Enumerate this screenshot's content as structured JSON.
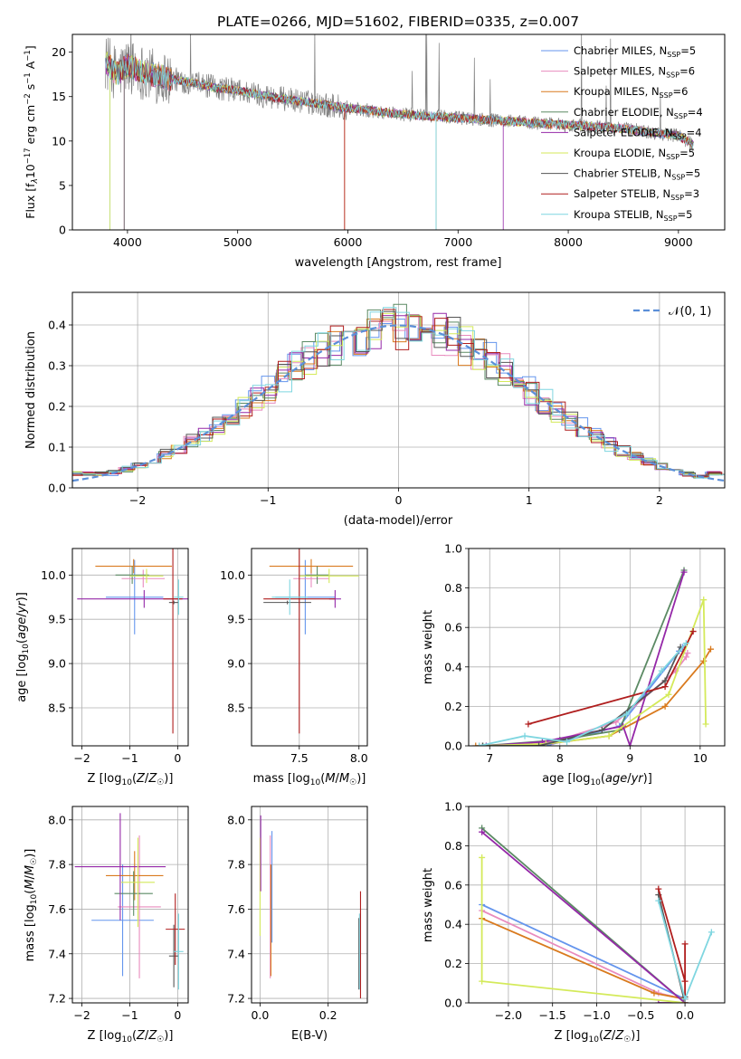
{
  "title": "PLATE=0266, MJD=51602, FIBERID=0335, z=0.007",
  "colors": [
    "#6495ED",
    "#E88BBE",
    "#D97A1E",
    "#5B8A64",
    "#9528A8",
    "#D4EA5A",
    "#555555",
    "#B01E1E",
    "#7FD6E0"
  ],
  "chart_data": [
    {
      "id": "spectrum",
      "type": "line",
      "xlabel": "wavelength [Angstrom, rest frame]",
      "ylabel": "Flux [f_λ 10^-17 erg cm^-2 s^-1 A^-1]",
      "xlim": [
        3500,
        9420
      ],
      "ylim": [
        0,
        22
      ],
      "xticks": [
        4000,
        5000,
        6000,
        7000,
        8000,
        9000
      ],
      "yticks": [
        0,
        5,
        10,
        15,
        20
      ],
      "grid": false,
      "legend_position": "top-right",
      "continuum": {
        "x": [
          3800,
          3900,
          4000,
          4100,
          4200,
          4400,
          4600,
          4800,
          5000,
          5200,
          5500,
          6000,
          6500,
          7000,
          7500,
          8000,
          8500,
          9000,
          9150
        ],
        "y": [
          19,
          17.5,
          18.5,
          18,
          17.5,
          17,
          16.5,
          16,
          15.7,
          15.2,
          14.6,
          13.7,
          13.0,
          12.6,
          12.2,
          11.8,
          11.4,
          10.6,
          9.5
        ]
      },
      "series": [
        {
          "name": "Chabrier MILES",
          "nssp": "5"
        },
        {
          "name": "Salpeter MILES",
          "nssp": "6"
        },
        {
          "name": "Kroupa MILES",
          "nssp": "6"
        },
        {
          "name": "Chabrier ELODIE",
          "nssp": "4"
        },
        {
          "name": "Salpeter ELODIE",
          "nssp": "4"
        },
        {
          "name": "Kroupa ELODIE",
          "nssp": "5"
        },
        {
          "name": "Chabrier STELIB",
          "nssp": "5"
        },
        {
          "name": "Salpeter STELIB",
          "nssp": "3"
        },
        {
          "name": "Kroupa STELIB",
          "nssp": "5"
        }
      ]
    },
    {
      "id": "residuals",
      "type": "step-histogram",
      "xlabel": "(data-model)/error",
      "ylabel": "Normed distribution",
      "xlim": [
        -2.5,
        2.5
      ],
      "ylim": [
        0,
        0.48
      ],
      "xticks": [
        -2,
        -1,
        0,
        1,
        2
      ],
      "yticks": [
        0.0,
        0.1,
        0.2,
        0.3,
        0.4
      ],
      "grid": true,
      "legend": "𝒩(0, 1)",
      "legend_position": "top-right",
      "normal": {
        "mean": 0,
        "sigma": 1
      }
    },
    {
      "id": "age-vs-Z",
      "type": "errorbar",
      "xlabel": "Z [log10(Z/Z⊙)]",
      "ylabel": "age [log10(age/yr)]",
      "xlim": [
        -2.2,
        0.22
      ],
      "ylim": [
        8.07,
        10.3
      ],
      "xticks": [
        -2,
        -1,
        0
      ],
      "yticks": [
        8.5,
        9.0,
        9.5,
        10.0
      ],
      "grid": true,
      "points": [
        {
          "x": -0.9,
          "xerr": 0.6,
          "y": 9.75,
          "yerr": 0.42,
          "c": 0
        },
        {
          "x": -0.72,
          "xerr": 0.45,
          "y": 9.96,
          "yerr": 0.1,
          "c": 1
        },
        {
          "x": -0.92,
          "xerr": 0.8,
          "y": 10.1,
          "yerr": 0.08,
          "c": 2
        },
        {
          "x": -0.95,
          "xerr": 0.35,
          "y": 10.0,
          "yerr": 0.1,
          "c": 3
        },
        {
          "x": -0.7,
          "xerr": 1.4,
          "y": 9.73,
          "yerr": 0.1,
          "c": 4
        },
        {
          "x": -0.65,
          "xerr": 0.35,
          "y": 9.99,
          "yerr": 0.08,
          "c": 5
        },
        {
          "x": -0.08,
          "xerr": 0.1,
          "y": 9.69,
          "yerr": 0.02,
          "c": 6
        },
        {
          "x": -0.1,
          "xerr": 0.2,
          "y": 9.73,
          "yerr": 1.52,
          "c": 7
        },
        {
          "x": 0.02,
          "xerr": 0.1,
          "y": 9.75,
          "yerr": 0.2,
          "c": 8
        }
      ]
    },
    {
      "id": "age-vs-mass",
      "type": "errorbar",
      "xlabel": "mass [log10(M/M⊙)]",
      "ylabel": "",
      "xlim": [
        7.1,
        8.07
      ],
      "ylim": [
        8.07,
        10.3
      ],
      "xticks": [
        7.5,
        8.0
      ],
      "yticks": [
        8.5,
        9.0,
        9.5,
        10.0
      ],
      "grid": true,
      "points": [
        {
          "x": 7.55,
          "xerr": 0.25,
          "y": 9.75,
          "yerr": 0.42,
          "c": 0
        },
        {
          "x": 7.6,
          "xerr": 0.15,
          "y": 9.96,
          "yerr": 0.1,
          "c": 1
        },
        {
          "x": 7.6,
          "xerr": 0.35,
          "y": 10.1,
          "yerr": 0.08,
          "c": 2
        },
        {
          "x": 7.65,
          "xerr": 0.1,
          "y": 10.0,
          "yerr": 0.1,
          "c": 3
        },
        {
          "x": 7.8,
          "xerr": 0.05,
          "y": 9.73,
          "yerr": 0.1,
          "c": 4
        },
        {
          "x": 7.75,
          "xerr": 0.25,
          "y": 9.99,
          "yerr": 0.08,
          "c": 5
        },
        {
          "x": 7.4,
          "xerr": 0.2,
          "y": 9.69,
          "yerr": 0.02,
          "c": 6
        },
        {
          "x": 7.5,
          "xerr": 0.3,
          "y": 9.73,
          "yerr": 1.52,
          "c": 7
        },
        {
          "x": 7.42,
          "xerr": 0.15,
          "y": 9.75,
          "yerr": 0.2,
          "c": 8
        }
      ]
    },
    {
      "id": "mass-weight-vs-age",
      "type": "line",
      "xlabel": "age [log10(age/yr)]",
      "ylabel": "mass weight",
      "xlim": [
        6.7,
        10.35
      ],
      "ylim": [
        0,
        1.0
      ],
      "xticks": [
        7,
        8,
        9,
        10
      ],
      "yticks": [
        0.0,
        0.2,
        0.4,
        0.6,
        0.8,
        1.0
      ],
      "grid": true,
      "series": [
        {
          "c": 0,
          "x": [
            6.9,
            7.8,
            8.85,
            9.7,
            9.75
          ],
          "y": [
            0.0,
            0.0,
            0.1,
            0.48,
            0.5
          ]
        },
        {
          "c": 1,
          "x": [
            6.85,
            7.9,
            8.8,
            9.65,
            9.8,
            9.82
          ],
          "y": [
            0.0,
            0.02,
            0.12,
            0.38,
            0.45,
            0.47
          ]
        },
        {
          "c": 2,
          "x": [
            6.8,
            7.6,
            8.7,
            9.5,
            10.05,
            10.15
          ],
          "y": [
            0.0,
            0.0,
            0.05,
            0.2,
            0.43,
            0.49
          ]
        },
        {
          "c": 3,
          "x": [
            6.9,
            8.0,
            8.85,
            9.77
          ],
          "y": [
            0.0,
            0.03,
            0.08,
            0.89
          ]
        },
        {
          "c": 4,
          "x": [
            6.95,
            7.75,
            8.9,
            9.0,
            9.77
          ],
          "y": [
            0.0,
            0.02,
            0.1,
            0.0,
            0.88
          ]
        },
        {
          "c": 5,
          "x": [
            6.9,
            7.8,
            8.7,
            9.55,
            10.05,
            10.08
          ],
          "y": [
            0.0,
            0.01,
            0.05,
            0.26,
            0.74,
            0.11
          ]
        },
        {
          "c": 6,
          "x": [
            6.9,
            7.7,
            8.6,
            9.5,
            9.72
          ],
          "y": [
            0.0,
            0.0,
            0.08,
            0.33,
            0.5
          ]
        },
        {
          "c": 7,
          "x": [
            7.55,
            9.5,
            9.9
          ],
          "y": [
            0.11,
            0.3,
            0.58
          ]
        },
        {
          "c": 8,
          "x": [
            6.85,
            7.5,
            8.1,
            8.95,
            9.45,
            9.8
          ],
          "y": [
            0.0,
            0.05,
            0.02,
            0.16,
            0.38,
            0.52
          ]
        }
      ]
    },
    {
      "id": "mass-vs-Z",
      "type": "errorbar",
      "xlabel": "Z [log10(Z/Z⊙)]",
      "ylabel": "mass [log10(M/M⊙)]",
      "xlim": [
        -2.2,
        0.22
      ],
      "ylim": [
        7.18,
        8.06
      ],
      "xticks": [
        -2,
        -1,
        0
      ],
      "yticks": [
        7.2,
        7.4,
        7.6,
        7.8,
        8.0
      ],
      "grid": true,
      "points": [
        {
          "x": -1.15,
          "xerr": 0.65,
          "y": 7.55,
          "yerr": 0.25,
          "c": 0
        },
        {
          "x": -0.8,
          "xerr": 0.45,
          "y": 7.61,
          "yerr": 0.32,
          "c": 1
        },
        {
          "x": -0.9,
          "xerr": 0.6,
          "y": 7.75,
          "yerr": 0.11,
          "c": 2
        },
        {
          "x": -0.92,
          "xerr": 0.4,
          "y": 7.67,
          "yerr": 0.1,
          "c": 3
        },
        {
          "x": -1.2,
          "xerr": 0.95,
          "y": 7.79,
          "yerr": 0.24,
          "c": 4
        },
        {
          "x": -0.83,
          "xerr": 0.35,
          "y": 7.72,
          "yerr": 0.2,
          "c": 5
        },
        {
          "x": -0.08,
          "xerr": 0.1,
          "y": 7.39,
          "yerr": 0.14,
          "c": 6
        },
        {
          "x": -0.05,
          "xerr": 0.2,
          "y": 7.51,
          "yerr": 0.16,
          "c": 7
        },
        {
          "x": 0.02,
          "xerr": 0.1,
          "y": 7.41,
          "yerr": 0.17,
          "c": 8
        }
      ]
    },
    {
      "id": "mass-vs-EBV",
      "type": "errorbar",
      "xlabel": "E(B-V)",
      "ylabel": "",
      "xlim": [
        -0.025,
        0.315
      ],
      "ylim": [
        7.18,
        8.06
      ],
      "xticks": [
        0.0,
        0.2
      ],
      "yticks": [
        7.2,
        7.4,
        7.6,
        7.8,
        8.0
      ],
      "grid": true,
      "points": [
        {
          "x": 0.0,
          "xerr": 0.0,
          "y": 7.7,
          "yerr": 0.22,
          "c": 5
        },
        {
          "x": 0.002,
          "xerr": 0.0,
          "y": 7.85,
          "yerr": 0.17,
          "c": 4
        },
        {
          "x": 0.03,
          "xerr": 0.0,
          "y": 7.61,
          "yerr": 0.32,
          "c": 1
        },
        {
          "x": 0.032,
          "xerr": 0.0,
          "y": 7.55,
          "yerr": 0.25,
          "c": 2
        },
        {
          "x": 0.035,
          "xerr": 0.0,
          "y": 7.7,
          "yerr": 0.25,
          "c": 0
        },
        {
          "x": 0.29,
          "xerr": 0.0,
          "y": 7.4,
          "yerr": 0.16,
          "c": 6
        },
        {
          "x": 0.292,
          "xerr": 0.0,
          "y": 7.41,
          "yerr": 0.17,
          "c": 8
        },
        {
          "x": 0.295,
          "xerr": 0.0,
          "y": 7.44,
          "yerr": 0.24,
          "c": 7
        }
      ]
    },
    {
      "id": "mass-weight-vs-Z",
      "type": "line",
      "xlabel": "Z [log10(Z/Z⊙)]",
      "ylabel": "mass weight",
      "xlim": [
        -2.45,
        0.45
      ],
      "ylim": [
        0,
        1.0
      ],
      "xticks": [
        -2.0,
        -1.5,
        -1.0,
        -0.5,
        0.0
      ],
      "yticks": [
        0.0,
        0.2,
        0.4,
        0.6,
        0.8,
        1.0
      ],
      "grid": true,
      "series": [
        {
          "c": 0,
          "x": [
            -2.3,
            0.0,
            0.0
          ],
          "y": [
            0.5,
            0.02,
            0.0
          ]
        },
        {
          "c": 1,
          "x": [
            -2.3,
            -0.3,
            0.0
          ],
          "y": [
            0.47,
            0.05,
            0.02
          ]
        },
        {
          "c": 2,
          "x": [
            -2.3,
            -0.35,
            0.0
          ],
          "y": [
            0.43,
            0.05,
            0.02
          ]
        },
        {
          "c": 3,
          "x": [
            -2.3,
            0.0
          ],
          "y": [
            0.89,
            0.0
          ]
        },
        {
          "c": 4,
          "x": [
            -2.3,
            0.0,
            -0.3
          ],
          "y": [
            0.87,
            0.0,
            0.0
          ]
        },
        {
          "c": 5,
          "x": [
            -2.3,
            -2.3,
            0.0
          ],
          "y": [
            0.74,
            0.11,
            0.0
          ]
        },
        {
          "c": 6,
          "x": [
            -0.3,
            0.0,
            0.0
          ],
          "y": [
            0.55,
            0.0,
            0.03
          ]
        },
        {
          "c": 7,
          "x": [
            -0.3,
            0.0,
            0.0,
            0.0
          ],
          "y": [
            0.58,
            0.11,
            0.3,
            0.0
          ]
        },
        {
          "c": 8,
          "x": [
            -0.3,
            0.0,
            0.3
          ],
          "y": [
            0.52,
            0.02,
            0.36
          ]
        }
      ]
    }
  ]
}
